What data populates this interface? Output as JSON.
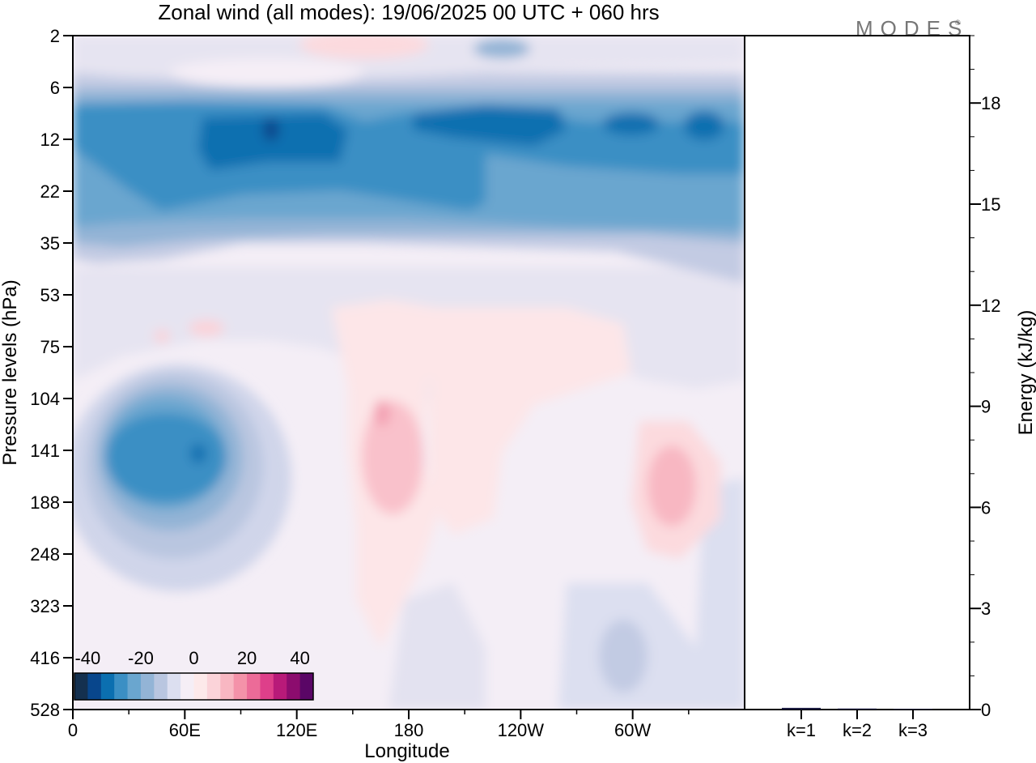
{
  "chart_data": [
    {
      "type": "heatmap",
      "title": "Zonal wind (all modes):  19/06/2025  00 UTC  + 060 hrs",
      "xlabel": "Longitude",
      "ylabel": "Pressure levels (hPa)",
      "x_ticks": [
        "0",
        "60E",
        "120E",
        "180",
        "120W",
        "60W"
      ],
      "y_ticks": [
        "2",
        "6",
        "12",
        "22",
        "35",
        "53",
        "75",
        "104",
        "141",
        "188",
        "248",
        "323",
        "416",
        "528"
      ],
      "colorbar": {
        "ticks": [
          "-40",
          "-20",
          "0",
          "20",
          "40"
        ],
        "range": [
          -45,
          45
        ],
        "colors": [
          "#14304f",
          "#08468c",
          "#0b6fb0",
          "#3b8fc4",
          "#6aa6cf",
          "#93b4d6",
          "#b9c6e0",
          "#dcdff0",
          "#f5eef6",
          "#fde9ea",
          "#fbd3d9",
          "#f8b7c2",
          "#f492a9",
          "#ec6b98",
          "#de3f8a",
          "#b81a79",
          "#8c0c6e",
          "#5a0666"
        ]
      },
      "grid": false
    },
    {
      "type": "bar",
      "categories": [
        "k=1",
        "k=2",
        "k=3"
      ],
      "values": [
        0.05,
        0.03,
        0.02
      ],
      "ylabel": "Energy (kJ/kg)",
      "ylim": [
        0,
        20
      ],
      "y_ticks": [
        "0",
        "3",
        "6",
        "9",
        "12",
        "15",
        "18"
      ],
      "bar_color": "#1a1a40"
    }
  ],
  "watermark": "MODES"
}
